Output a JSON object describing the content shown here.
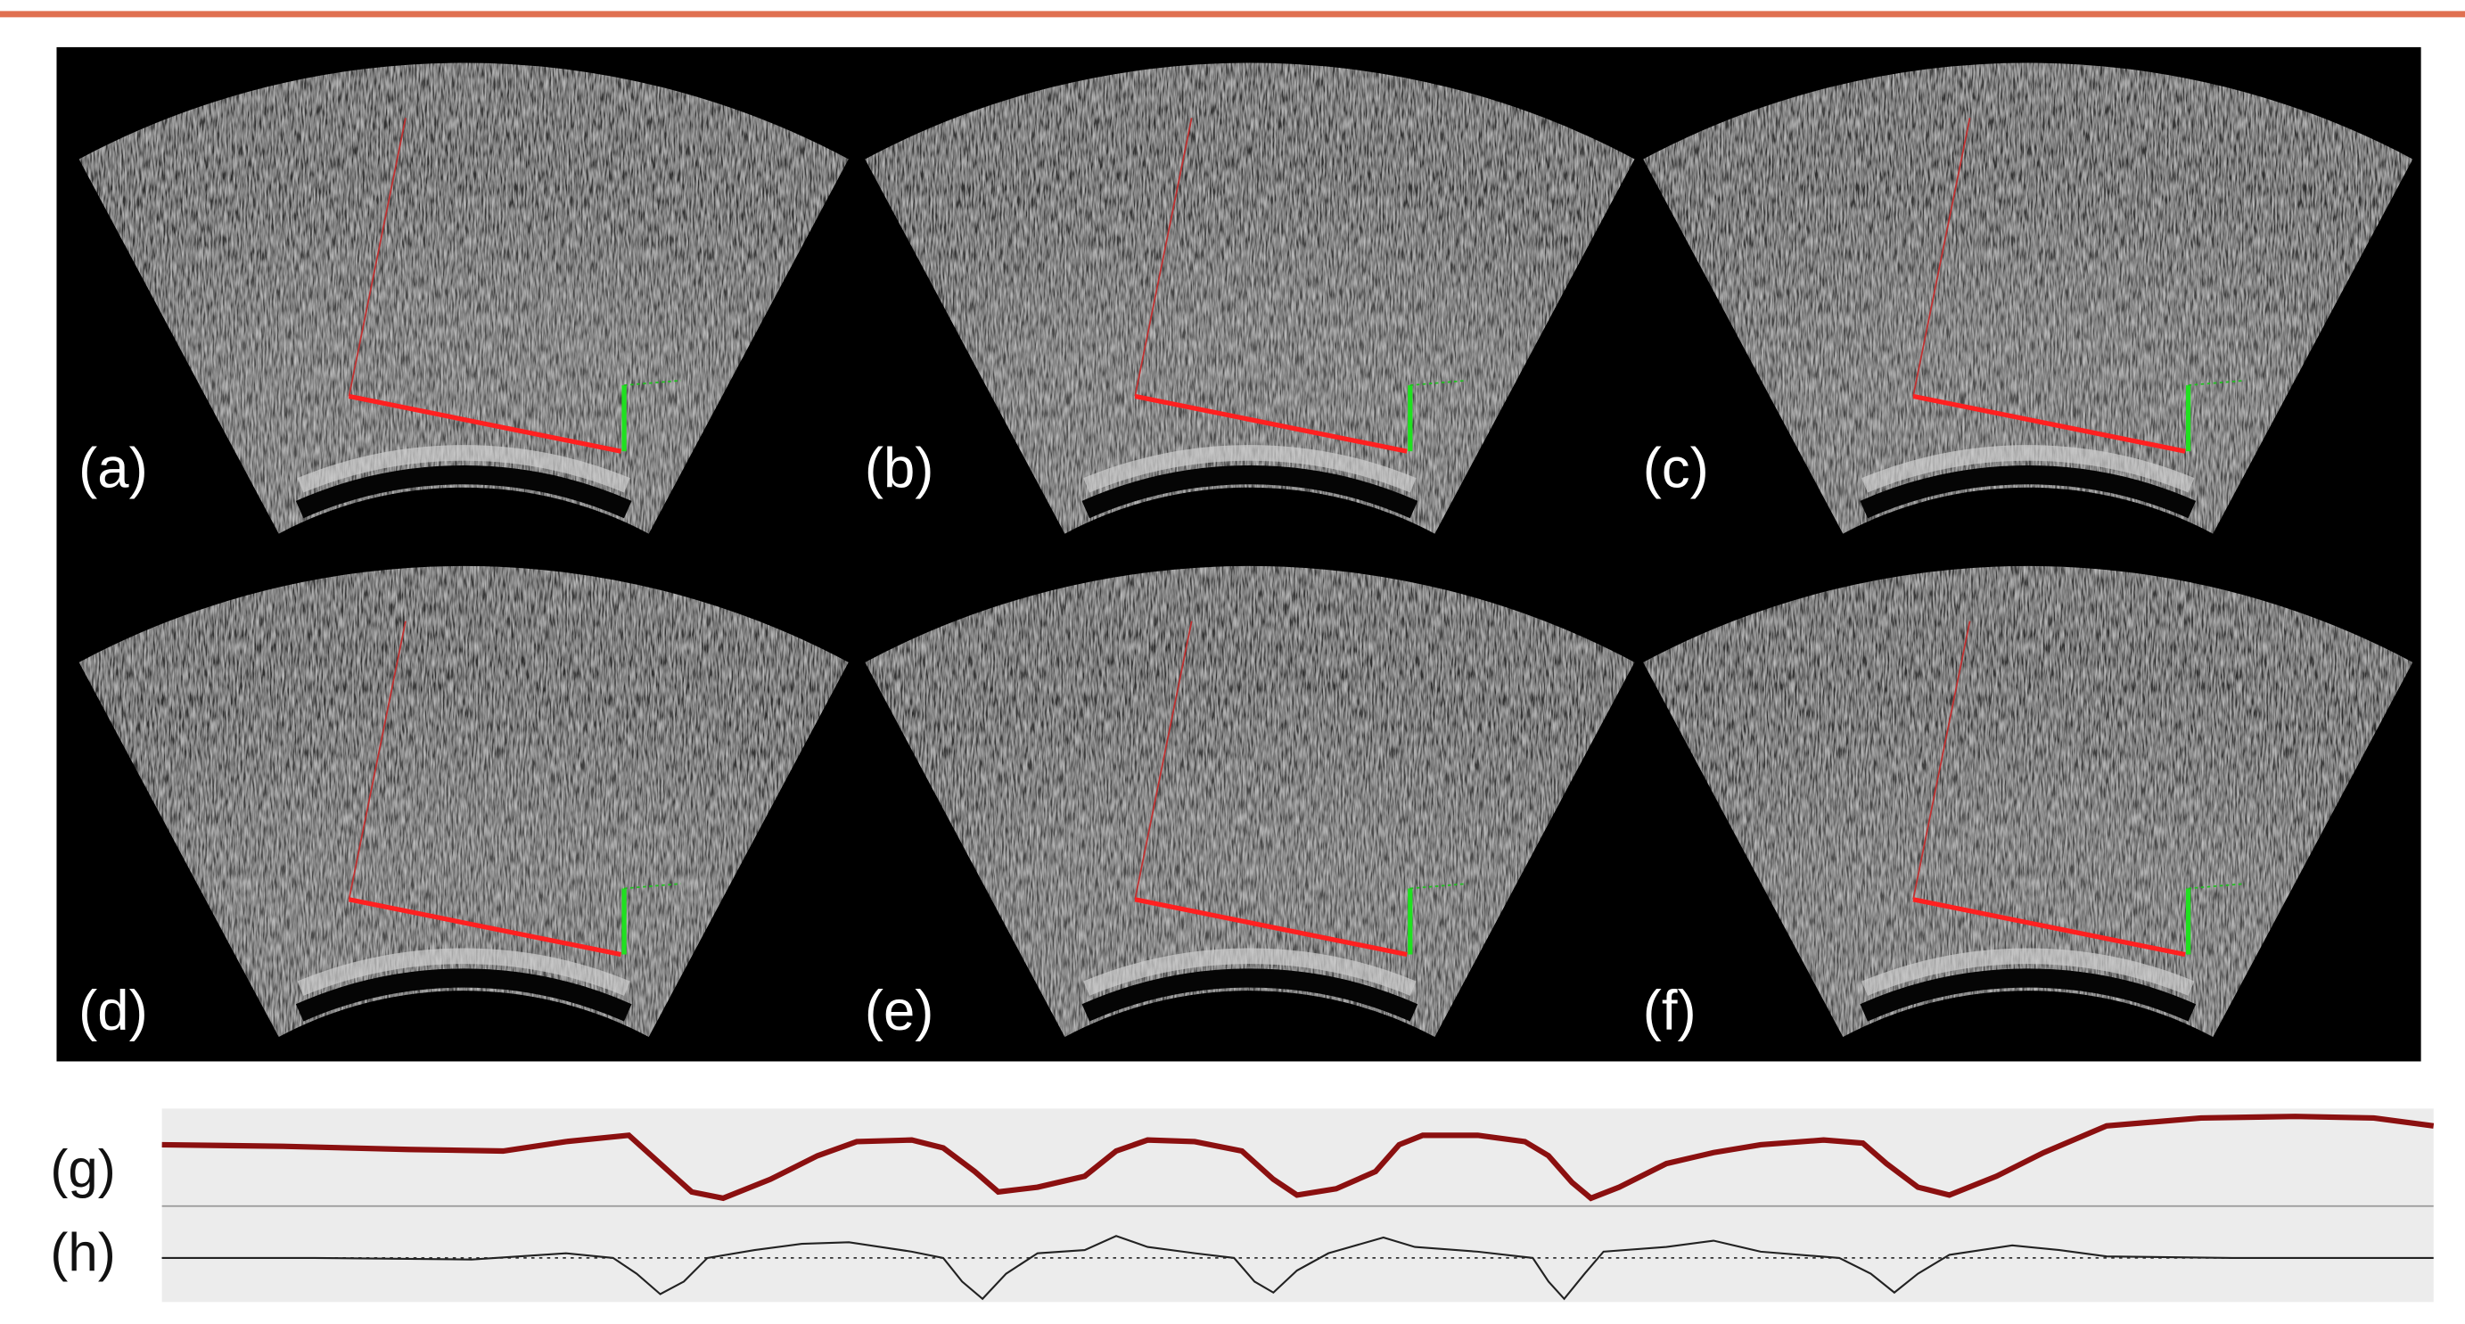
{
  "panels": [
    {
      "label": "(a)"
    },
    {
      "label": "(b)"
    },
    {
      "label": "(c)"
    },
    {
      "label": "(d)"
    },
    {
      "label": "(e)"
    },
    {
      "label": "(f)"
    }
  ],
  "signals": [
    {
      "label": "(g)"
    },
    {
      "label": "(h)"
    }
  ]
}
